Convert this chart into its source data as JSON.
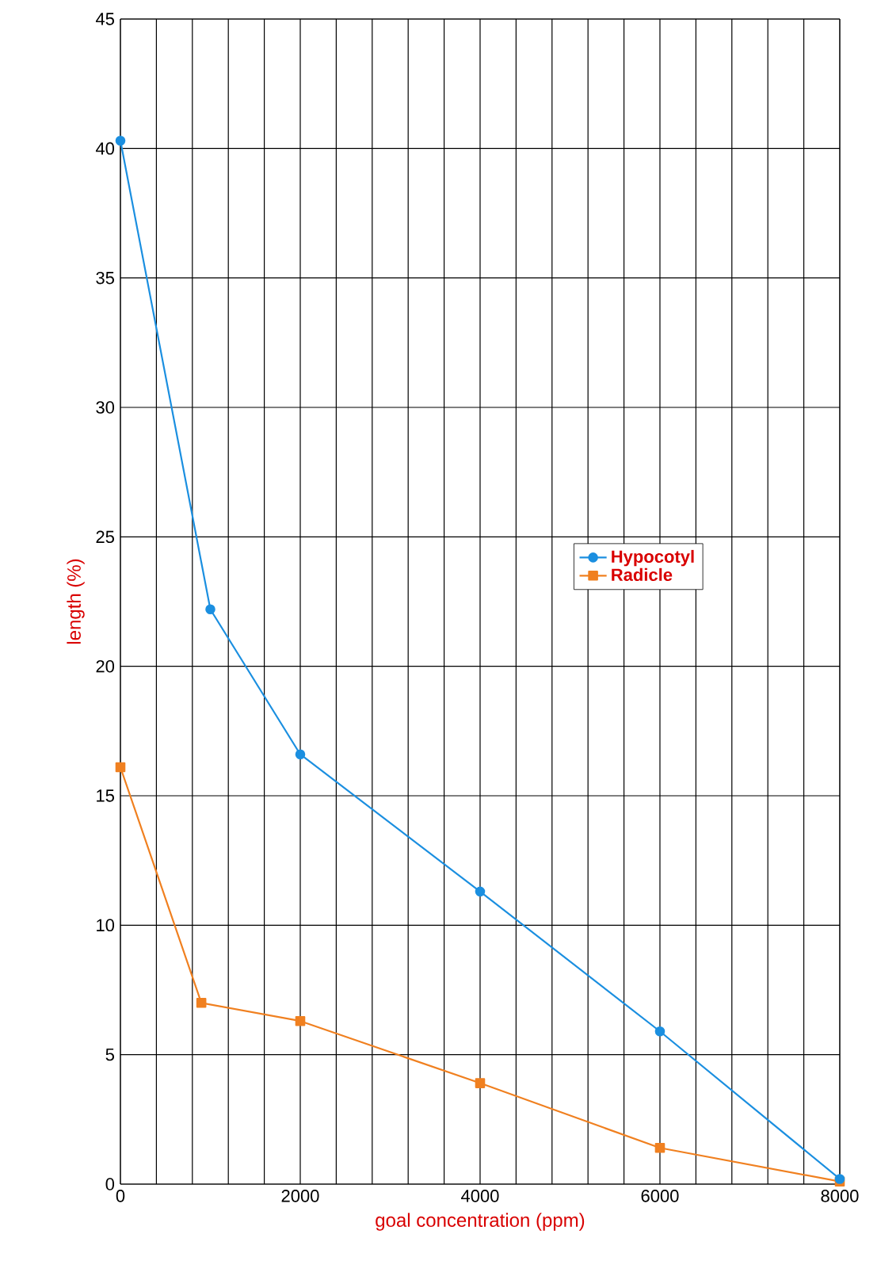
{
  "chart_data": {
    "type": "line",
    "xlabel": "goal concentration (ppm)",
    "ylabel": "length (%)",
    "xlim": [
      0,
      8000
    ],
    "ylim": [
      0,
      45
    ],
    "xticks": [
      0,
      2000,
      4000,
      6000,
      8000
    ],
    "yticks": [
      0,
      5,
      10,
      15,
      20,
      25,
      30,
      35,
      40,
      45
    ],
    "grid": true,
    "legend": "right",
    "series": [
      {
        "name": "Hypocotyl",
        "color": "#1b8fe0",
        "marker": "circle",
        "x": [
          0,
          1000,
          2000,
          4000,
          6000,
          8000
        ],
        "values": [
          40.3,
          22.2,
          16.6,
          11.3,
          5.9,
          0.2
        ]
      },
      {
        "name": "Radicle",
        "color": "#f08020",
        "marker": "square",
        "x": [
          0,
          900,
          2000,
          4000,
          6000,
          8000
        ],
        "values": [
          16.1,
          7.0,
          6.3,
          3.9,
          1.4,
          0.1
        ]
      }
    ]
  }
}
